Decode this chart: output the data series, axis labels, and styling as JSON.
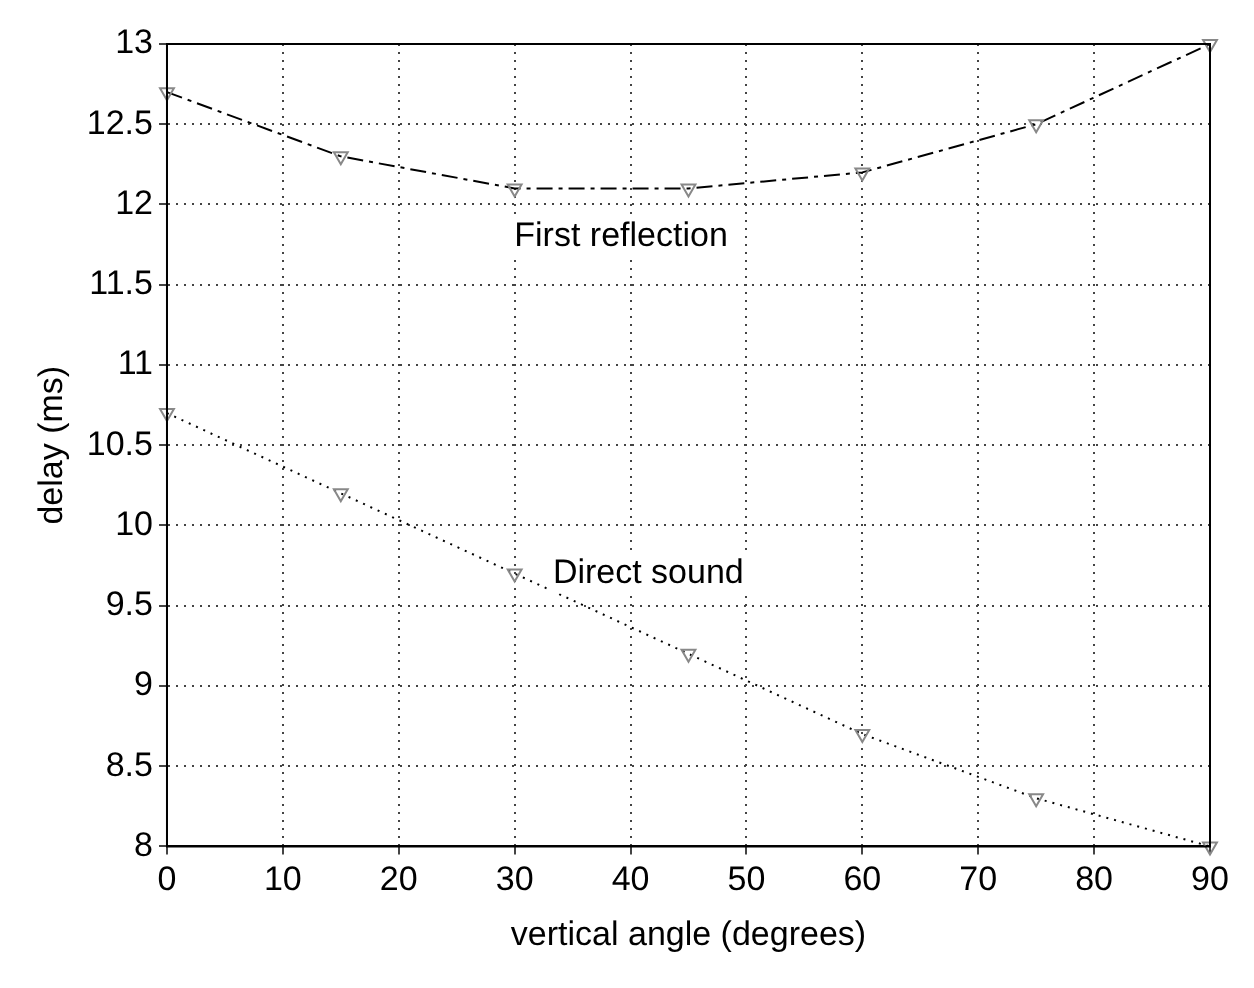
{
  "chart_data": {
    "type": "line",
    "xlabel": "vertical angle (degrees)",
    "ylabel": "delay (ms)",
    "x": [
      0,
      15,
      30,
      45,
      60,
      75,
      90
    ],
    "series": [
      {
        "color": "#000000",
        "line_style": "dashed",
        "values": [
          12.7,
          12.3,
          12.1,
          12.1,
          12.2,
          12.5,
          13.0
        ]
      },
      {
        "color": "#000000",
        "line_style": "dotted",
        "values": [
          10.7,
          10.2,
          9.7,
          9.2,
          8.7,
          8.3,
          8.0
        ]
      }
    ],
    "xlim": [
      0,
      90
    ],
    "xticks": [
      0,
      10,
      20,
      30,
      40,
      50,
      60,
      70,
      80,
      90
    ],
    "ylim": [
      8,
      13
    ],
    "yticks": [
      8,
      8.5,
      9,
      9.5,
      10,
      10.5,
      11,
      11.5,
      12,
      12.5,
      13
    ],
    "grid": true,
    "legend": false,
    "marker": "triangle",
    "annotations": [
      "First reflection",
      "Direct sound"
    ]
  }
}
